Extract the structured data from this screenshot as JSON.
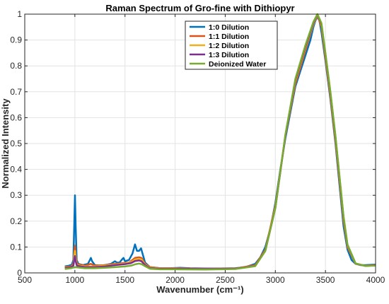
{
  "chart_data": {
    "type": "line",
    "title": "Raman Spectrum of Gro-fine with Dithiopyr",
    "xlabel": "Wavenumber (cm⁻¹)",
    "ylabel": "Normalized Intensity",
    "xlim": [
      500,
      4000
    ],
    "ylim": [
      0,
      1
    ],
    "x_ticks": [
      500,
      1000,
      1500,
      2000,
      2500,
      3000,
      3500,
      4000
    ],
    "y_ticks": [
      0,
      0.1,
      0.2,
      0.3,
      0.4,
      0.5,
      0.6,
      0.7,
      0.8,
      0.9,
      1
    ],
    "x_tick_labels": [
      "500",
      "1000",
      "1500",
      "2000",
      "2500",
      "3000",
      "3500",
      "4000"
    ],
    "y_tick_labels": [
      "0",
      "0.1",
      "0.2",
      "0.3",
      "0.4",
      "0.5",
      "0.6",
      "0.7",
      "0.8",
      "0.9",
      "1"
    ],
    "grid": true,
    "legend_position": "top-center",
    "series": [
      {
        "name": "1:0 Dilution",
        "color": "#0072BD",
        "points": [
          [
            900,
            0.025
          ],
          [
            940,
            0.028
          ],
          [
            970,
            0.032
          ],
          [
            985,
            0.05
          ],
          [
            995,
            0.2
          ],
          [
            1001,
            0.3
          ],
          [
            1008,
            0.18
          ],
          [
            1018,
            0.05
          ],
          [
            1035,
            0.035
          ],
          [
            1080,
            0.03
          ],
          [
            1130,
            0.035
          ],
          [
            1150,
            0.05
          ],
          [
            1160,
            0.058
          ],
          [
            1172,
            0.045
          ],
          [
            1200,
            0.03
          ],
          [
            1260,
            0.028
          ],
          [
            1320,
            0.032
          ],
          [
            1360,
            0.035
          ],
          [
            1400,
            0.045
          ],
          [
            1420,
            0.04
          ],
          [
            1445,
            0.04
          ],
          [
            1470,
            0.052
          ],
          [
            1485,
            0.058
          ],
          [
            1500,
            0.045
          ],
          [
            1540,
            0.05
          ],
          [
            1575,
            0.075
          ],
          [
            1600,
            0.11
          ],
          [
            1620,
            0.085
          ],
          [
            1640,
            0.085
          ],
          [
            1660,
            0.095
          ],
          [
            1675,
            0.075
          ],
          [
            1700,
            0.04
          ],
          [
            1750,
            0.022
          ],
          [
            1850,
            0.018
          ],
          [
            1950,
            0.018
          ],
          [
            2050,
            0.02
          ],
          [
            2150,
            0.018
          ],
          [
            2300,
            0.017
          ],
          [
            2450,
            0.017
          ],
          [
            2600,
            0.018
          ],
          [
            2700,
            0.022
          ],
          [
            2800,
            0.035
          ],
          [
            2850,
            0.06
          ],
          [
            2900,
            0.1
          ],
          [
            2950,
            0.17
          ],
          [
            3000,
            0.27
          ],
          [
            3050,
            0.4
          ],
          [
            3100,
            0.52
          ],
          [
            3150,
            0.62
          ],
          [
            3200,
            0.72
          ],
          [
            3250,
            0.78
          ],
          [
            3300,
            0.84
          ],
          [
            3350,
            0.9
          ],
          [
            3380,
            0.95
          ],
          [
            3400,
            0.975
          ],
          [
            3420,
            0.99
          ],
          [
            3440,
            0.975
          ],
          [
            3460,
            0.93
          ],
          [
            3500,
            0.82
          ],
          [
            3550,
            0.67
          ],
          [
            3600,
            0.5
          ],
          [
            3640,
            0.34
          ],
          [
            3680,
            0.18
          ],
          [
            3720,
            0.09
          ],
          [
            3760,
            0.05
          ],
          [
            3800,
            0.035
          ],
          [
            3850,
            0.03
          ],
          [
            3900,
            0.03
          ],
          [
            4000,
            0.032
          ]
        ]
      },
      {
        "name": "1:1 Dilution",
        "color": "#D95319",
        "points": [
          [
            900,
            0.022
          ],
          [
            960,
            0.025
          ],
          [
            985,
            0.035
          ],
          [
            995,
            0.085
          ],
          [
            1001,
            0.105
          ],
          [
            1008,
            0.07
          ],
          [
            1020,
            0.035
          ],
          [
            1100,
            0.028
          ],
          [
            1160,
            0.035
          ],
          [
            1200,
            0.028
          ],
          [
            1300,
            0.03
          ],
          [
            1400,
            0.035
          ],
          [
            1480,
            0.038
          ],
          [
            1540,
            0.04
          ],
          [
            1600,
            0.058
          ],
          [
            1640,
            0.06
          ],
          [
            1665,
            0.058
          ],
          [
            1700,
            0.035
          ],
          [
            1750,
            0.022
          ],
          [
            1850,
            0.018
          ],
          [
            2000,
            0.018
          ],
          [
            2300,
            0.016
          ],
          [
            2600,
            0.017
          ],
          [
            2800,
            0.03
          ],
          [
            2900,
            0.09
          ],
          [
            3000,
            0.26
          ],
          [
            3100,
            0.53
          ],
          [
            3200,
            0.73
          ],
          [
            3300,
            0.86
          ],
          [
            3380,
            0.96
          ],
          [
            3420,
            0.995
          ],
          [
            3460,
            0.95
          ],
          [
            3500,
            0.83
          ],
          [
            3550,
            0.68
          ],
          [
            3600,
            0.51
          ],
          [
            3680,
            0.2
          ],
          [
            3720,
            0.1
          ],
          [
            3800,
            0.035
          ],
          [
            3900,
            0.028
          ],
          [
            4000,
            0.03
          ]
        ]
      },
      {
        "name": "1:2 Dilution",
        "color": "#EDB120",
        "points": [
          [
            900,
            0.02
          ],
          [
            960,
            0.023
          ],
          [
            985,
            0.03
          ],
          [
            995,
            0.07
          ],
          [
            1001,
            0.085
          ],
          [
            1008,
            0.055
          ],
          [
            1020,
            0.03
          ],
          [
            1100,
            0.025
          ],
          [
            1200,
            0.025
          ],
          [
            1300,
            0.028
          ],
          [
            1400,
            0.032
          ],
          [
            1500,
            0.036
          ],
          [
            1560,
            0.042
          ],
          [
            1600,
            0.052
          ],
          [
            1640,
            0.055
          ],
          [
            1665,
            0.052
          ],
          [
            1700,
            0.032
          ],
          [
            1750,
            0.02
          ],
          [
            1850,
            0.017
          ],
          [
            2000,
            0.017
          ],
          [
            2300,
            0.015
          ],
          [
            2600,
            0.016
          ],
          [
            2800,
            0.028
          ],
          [
            2900,
            0.085
          ],
          [
            3000,
            0.255
          ],
          [
            3100,
            0.53
          ],
          [
            3200,
            0.74
          ],
          [
            3300,
            0.87
          ],
          [
            3380,
            0.96
          ],
          [
            3420,
            0.998
          ],
          [
            3460,
            0.955
          ],
          [
            3500,
            0.84
          ],
          [
            3550,
            0.69
          ],
          [
            3600,
            0.52
          ],
          [
            3680,
            0.21
          ],
          [
            3720,
            0.105
          ],
          [
            3800,
            0.035
          ],
          [
            3900,
            0.027
          ],
          [
            4000,
            0.029
          ]
        ]
      },
      {
        "name": "1:3 Dilution",
        "color": "#7E2F8E",
        "points": [
          [
            900,
            0.018
          ],
          [
            960,
            0.022
          ],
          [
            985,
            0.028
          ],
          [
            995,
            0.055
          ],
          [
            1001,
            0.065
          ],
          [
            1008,
            0.045
          ],
          [
            1020,
            0.028
          ],
          [
            1100,
            0.022
          ],
          [
            1200,
            0.022
          ],
          [
            1300,
            0.025
          ],
          [
            1400,
            0.03
          ],
          [
            1500,
            0.034
          ],
          [
            1560,
            0.038
          ],
          [
            1600,
            0.046
          ],
          [
            1640,
            0.048
          ],
          [
            1665,
            0.045
          ],
          [
            1700,
            0.03
          ],
          [
            1750,
            0.018
          ],
          [
            1850,
            0.016
          ],
          [
            2000,
            0.016
          ],
          [
            2300,
            0.015
          ],
          [
            2600,
            0.016
          ],
          [
            2800,
            0.027
          ],
          [
            2900,
            0.085
          ],
          [
            3000,
            0.25
          ],
          [
            3100,
            0.53
          ],
          [
            3200,
            0.745
          ],
          [
            3300,
            0.875
          ],
          [
            3380,
            0.965
          ],
          [
            3420,
            0.999
          ],
          [
            3460,
            0.96
          ],
          [
            3500,
            0.845
          ],
          [
            3550,
            0.695
          ],
          [
            3600,
            0.525
          ],
          [
            3680,
            0.215
          ],
          [
            3720,
            0.108
          ],
          [
            3800,
            0.036
          ],
          [
            3900,
            0.027
          ],
          [
            4000,
            0.029
          ]
        ]
      },
      {
        "name": "Deionized Water",
        "color": "#77AC30",
        "points": [
          [
            900,
            0.015
          ],
          [
            960,
            0.018
          ],
          [
            1000,
            0.022
          ],
          [
            1100,
            0.018
          ],
          [
            1200,
            0.018
          ],
          [
            1300,
            0.02
          ],
          [
            1400,
            0.022
          ],
          [
            1500,
            0.025
          ],
          [
            1560,
            0.028
          ],
          [
            1600,
            0.033
          ],
          [
            1640,
            0.036
          ],
          [
            1665,
            0.034
          ],
          [
            1700,
            0.026
          ],
          [
            1750,
            0.016
          ],
          [
            1850,
            0.014
          ],
          [
            2000,
            0.014
          ],
          [
            2300,
            0.013
          ],
          [
            2600,
            0.015
          ],
          [
            2800,
            0.026
          ],
          [
            2900,
            0.085
          ],
          [
            3000,
            0.25
          ],
          [
            3100,
            0.535
          ],
          [
            3200,
            0.75
          ],
          [
            3300,
            0.88
          ],
          [
            3380,
            0.97
          ],
          [
            3420,
            1.0
          ],
          [
            3460,
            0.965
          ],
          [
            3500,
            0.85
          ],
          [
            3550,
            0.7
          ],
          [
            3600,
            0.53
          ],
          [
            3680,
            0.22
          ],
          [
            3720,
            0.11
          ],
          [
            3800,
            0.037
          ],
          [
            3900,
            0.027
          ],
          [
            4000,
            0.028
          ]
        ]
      }
    ]
  }
}
